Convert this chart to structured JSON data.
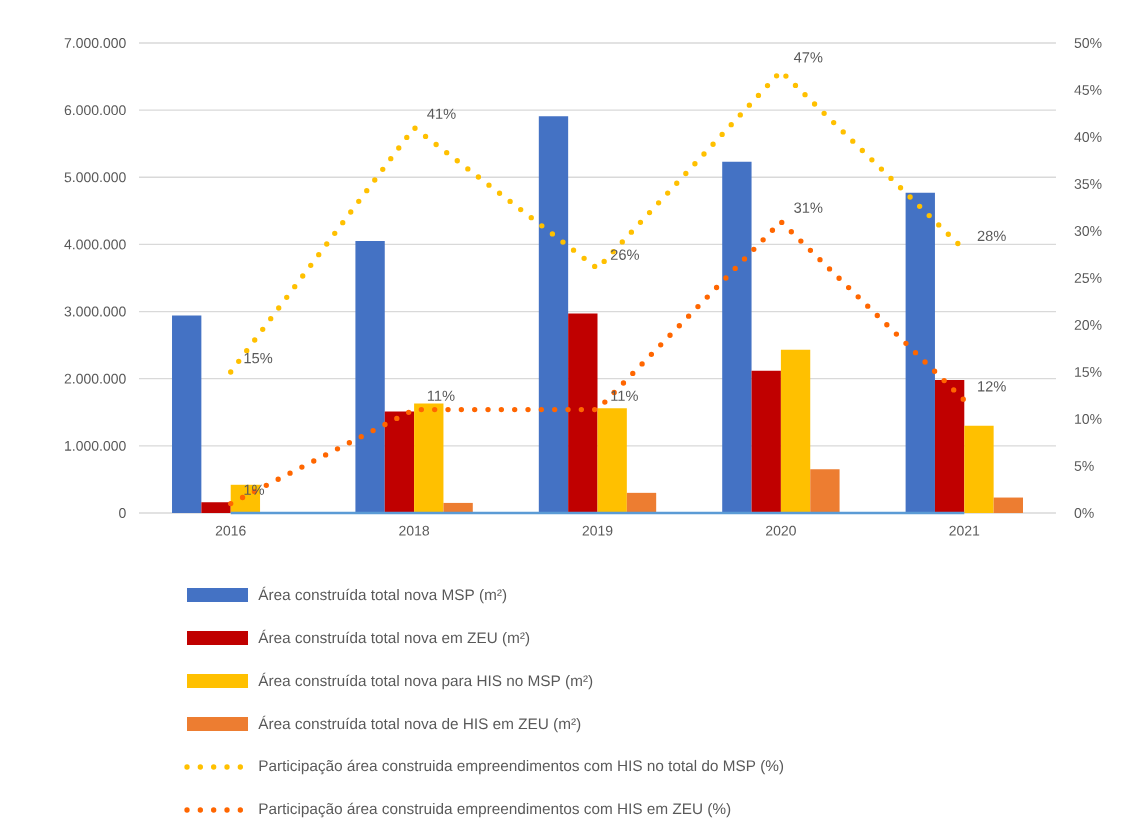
{
  "chart_data": {
    "type": "bar",
    "categories": [
      "2016",
      "2018",
      "2019",
      "2020",
      "2021"
    ],
    "series": [
      {
        "name": "Área construída total nova MSP (m²)",
        "color": "#4472c4",
        "values": [
          2940000,
          4050000,
          5910000,
          5230000,
          4770000
        ]
      },
      {
        "name": "Área construída total nova em ZEU (m²)",
        "color": "#c00000",
        "values": [
          160000,
          1510000,
          2970000,
          2120000,
          1980000
        ]
      },
      {
        "name": "Área construída total nova para HIS no MSP (m²)",
        "color": "#ffc000",
        "values": [
          420000,
          1630000,
          1560000,
          2430000,
          1300000
        ]
      },
      {
        "name": "Área construída total nova de HIS em ZEU (m²)",
        "color": "#ed7d31",
        "values": [
          0,
          150000,
          300000,
          650000,
          230000
        ]
      },
      {
        "name": "Participação área construida empreendimentos com HIS no total do MSP (%)",
        "type": "line",
        "axis": "y2",
        "line_style": "dotted",
        "color": "#ffc000",
        "values": [
          15,
          41,
          26,
          47,
          28
        ],
        "value_labels": [
          "15%",
          "41%",
          "26%",
          "47%",
          "28%"
        ]
      },
      {
        "name": "Participação área construida empreendimentos com HIS em ZEU (%)",
        "type": "line",
        "axis": "y2",
        "line_style": "dotted",
        "color": "#ff6600",
        "values": [
          1,
          11,
          11,
          31,
          12
        ],
        "value_labels": [
          "1%",
          "11%",
          "11%",
          "31%",
          "12%"
        ]
      },
      {
        "type": "line",
        "axis": "y2",
        "line_style": "solid",
        "color": "#5b9bd5",
        "values": [
          0,
          0,
          0,
          0,
          0
        ]
      }
    ],
    "ylim": [
      0,
      7000000
    ],
    "yticks": [
      0,
      {
        "value": 1000000,
        "label": "1.000.000"
      },
      {
        "value": 2000000,
        "label": "2.000.000"
      },
      {
        "value": 3000000,
        "label": "3.000.000"
      },
      {
        "value": 4000000,
        "label": "4.000.000"
      },
      {
        "value": 5000000,
        "label": "5.000.000"
      },
      {
        "value": 6000000,
        "label": "6.000.000"
      },
      {
        "value": 7000000,
        "label": "7.000.000"
      }
    ],
    "y2lim": [
      0,
      50
    ],
    "y2ticks": [
      {
        "value": 0,
        "label": "0%"
      },
      {
        "value": 5,
        "label": "5%"
      },
      {
        "value": 10,
        "label": "10%"
      },
      {
        "value": 15,
        "label": "15%"
      },
      {
        "value": 20,
        "label": "20%"
      },
      {
        "value": 25,
        "label": "25%"
      },
      {
        "value": 30,
        "label": "30%"
      },
      {
        "value": 35,
        "label": "35%"
      },
      {
        "value": 40,
        "label": "40%"
      },
      {
        "value": 45,
        "label": "45%"
      },
      {
        "value": 50,
        "label": "50%"
      }
    ],
    "grid": "y",
    "legend": "bottom",
    "marker": "none"
  }
}
